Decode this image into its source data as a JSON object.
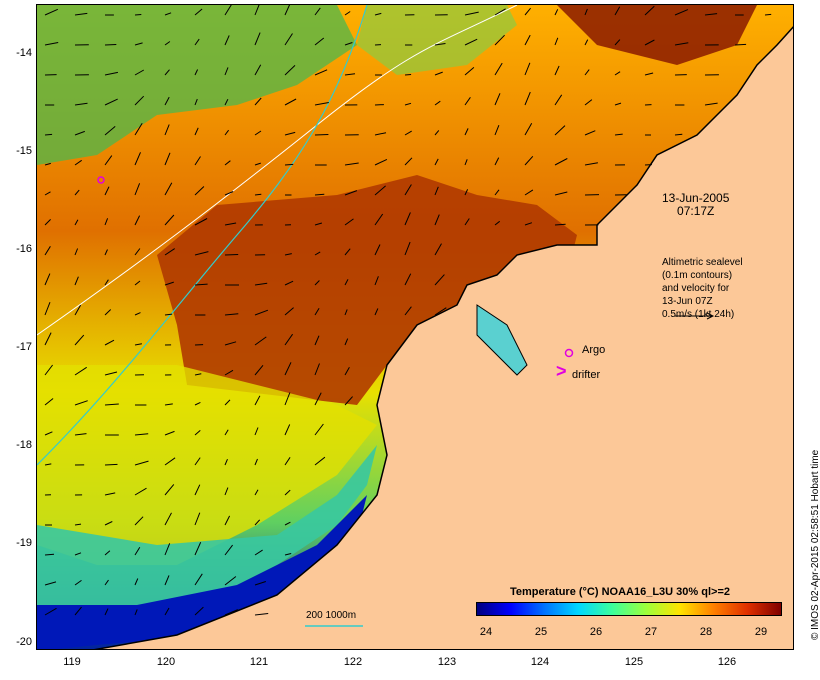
{
  "map": {
    "date_label": "13-Jun-2005",
    "time_label": "07:17Z",
    "legend_text": [
      "Altimetric sealevel",
      "(0.1m contours)",
      "and velocity for",
      "13-Jun 07Z",
      "0.5m/s (1kt 24h)"
    ],
    "argo_label": "Argo",
    "drifter_label": "drifter",
    "drifter_symbol": ">",
    "bathy_label": "200  1000m",
    "colorbar_title": "Temperature (°C) NOAA16_L3U 30% ql>=2",
    "colorbar_ticks": [
      "24",
      "25",
      "26",
      "27",
      "28",
      "29"
    ],
    "side_text": "© IMOS 02-Apr-2015 02:58:51 Hobart time",
    "lat_ticks": [
      "-14",
      "-15",
      "-16",
      "-17",
      "-18",
      "-19",
      "-20"
    ],
    "lon_ticks": [
      "119",
      "120",
      "121",
      "122",
      "123",
      "124",
      "125",
      "126"
    ],
    "colors": {
      "land": "#fcc898",
      "sst_cold": "#00007f",
      "sst_warm": "#7f0000",
      "argo": "#e000e0",
      "bathy_200": "#ffffff",
      "bathy_1000": "#33cccc"
    }
  }
}
